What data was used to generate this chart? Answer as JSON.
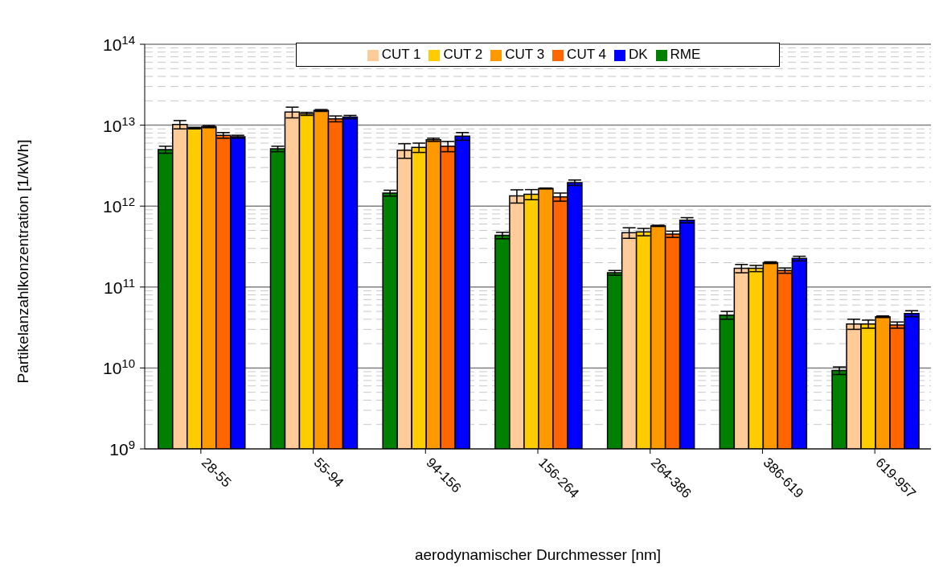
{
  "chart_data": {
    "type": "bar",
    "xlabel": "aerodynamischer Durchmesser [nm]",
    "ylabel": "Partikelanzahlkonzentration [1/kWh]",
    "categories": [
      "28-55",
      "55-94",
      "94-156",
      "156-264",
      "264-386",
      "386-619",
      "619-957"
    ],
    "series": [
      {
        "name": "RME",
        "color": "#008000",
        "values": [
          5000000000000.0,
          5100000000000.0,
          1450000000000.0,
          435000000000.0,
          150000000000.0,
          45000000000.0,
          9300000000.0
        ],
        "errors": [
          500000000000.0,
          400000000000.0,
          120000000000.0,
          40000000000.0,
          10000000000.0,
          5000000000.0,
          1000000000.0
        ]
      },
      {
        "name": "CUT 1",
        "color": "#ffcc99",
        "values": [
          10200000000000.0,
          14500000000000.0,
          4900000000000.0,
          1340000000000.0,
          470000000000.0,
          170000000000.0,
          35000000000.0
        ],
        "errors": [
          1200000000000.0,
          2200000000000.0,
          1000000000000.0,
          250000000000.0,
          70000000000.0,
          20000000000.0,
          5000000000.0
        ]
      },
      {
        "name": "CUT 2",
        "color": "#ffcc00",
        "values": [
          9200000000000.0,
          13800000000000.0,
          5300000000000.0,
          1400000000000.0,
          480000000000.0,
          170000000000.0,
          35000000000.0
        ],
        "errors": [
          200000000000.0,
          600000000000.0,
          700000000000.0,
          200000000000.0,
          50000000000.0,
          15000000000.0,
          4000000000.0
        ]
      },
      {
        "name": "CUT 3",
        "color": "#ff9900",
        "values": [
          9600000000000.0,
          15200000000000.0,
          6600000000000.0,
          1650000000000.0,
          570000000000.0,
          200000000000.0,
          43000000000.0
        ],
        "errors": [
          300000000000.0,
          400000000000.0,
          300000000000.0,
          20000000000.0,
          10000000000.0,
          5000000000.0,
          1000000000.0
        ]
      },
      {
        "name": "CUT 4",
        "color": "#ff6600",
        "values": [
          7500000000000.0,
          12000000000000.0,
          5500000000000.0,
          1300000000000.0,
          450000000000.0,
          160000000000.0,
          34000000000.0
        ],
        "errors": [
          600000000000.0,
          1000000000000.0,
          800000000000.0,
          150000000000.0,
          40000000000.0,
          12000000000.0,
          3000000000.0
        ]
      },
      {
        "name": "DK",
        "color": "#0000ff",
        "values": [
          7200000000000.0,
          12600000000000.0,
          7300000000000.0,
          1950000000000.0,
          670000000000.0,
          225000000000.0,
          47000000000.0
        ],
        "errors": [
          300000000000.0,
          600000000000.0,
          800000000000.0,
          150000000000.0,
          50000000000.0,
          15000000000.0,
          4000000000.0
        ]
      }
    ],
    "log": "y",
    "ylim": [
      1000000000.0,
      100000000000000.0
    ],
    "yticks": [
      {
        "value": 1000000000.0,
        "label": "10$^{9}$"
      },
      {
        "value": 10000000000.0,
        "label": "10$^{10}$"
      },
      {
        "value": 100000000000.0,
        "label": "10$^{11}$"
      },
      {
        "value": 1000000000000.0,
        "label": "10$^{12}$"
      },
      {
        "value": 10000000000000.0,
        "label": "10$^{13}$"
      },
      {
        "value": 100000000000000.0,
        "label": "10$^{14}$"
      }
    ],
    "grid": "y",
    "legend": "top"
  }
}
